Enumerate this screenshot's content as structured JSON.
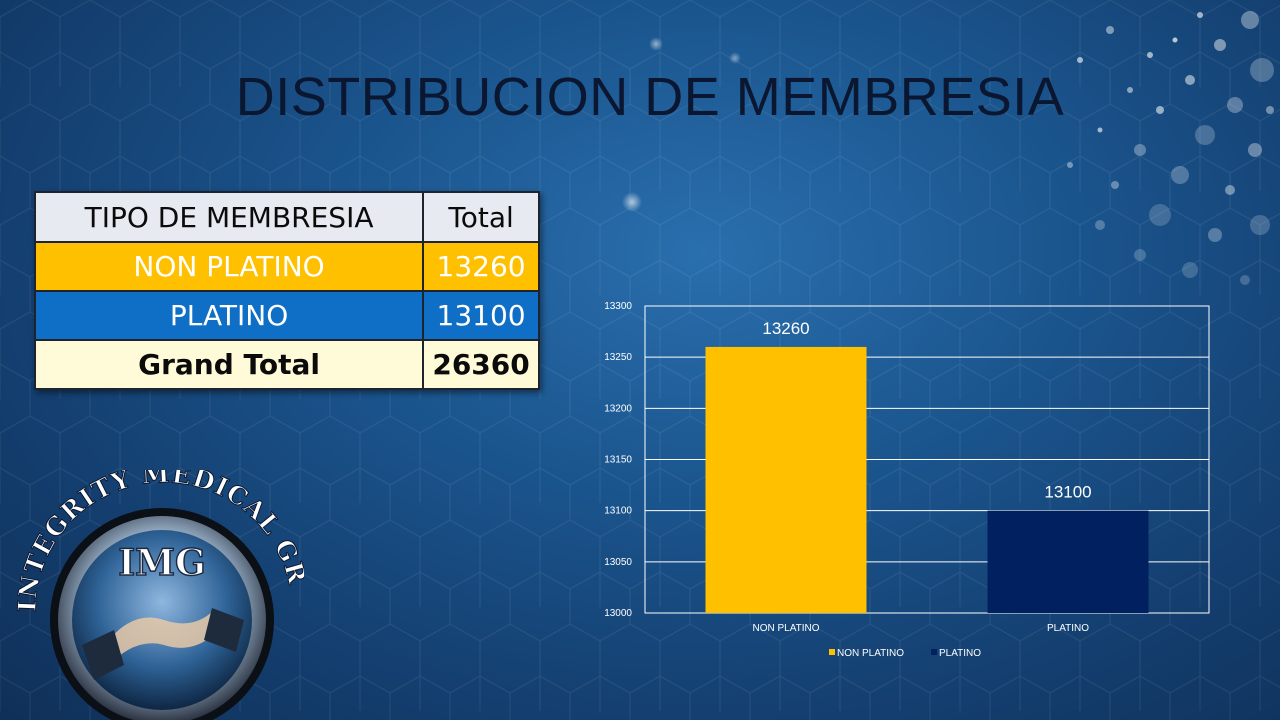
{
  "slide": {
    "title": "DISTRIBUCION DE MEMBRESIA"
  },
  "table": {
    "headers": [
      "TIPO DE MEMBRESIA",
      "Total"
    ],
    "rows": [
      {
        "label": "NON PLATINO",
        "value": "13260",
        "color": "#ffc000"
      },
      {
        "label": "PLATINO",
        "value": "13100",
        "color": "#0f6fc6"
      }
    ],
    "total": {
      "label": "Grand Total",
      "value": "26360"
    }
  },
  "logo": {
    "arc_text": "INTEGRITY MEDICAL GROUP",
    "monogram": "IMG"
  },
  "chart_data": {
    "type": "bar",
    "categories": [
      "NON PLATINO",
      "PLATINO"
    ],
    "values": [
      13260,
      13100
    ],
    "colors": [
      "#ffc000",
      "#002060"
    ],
    "ylim": [
      13000,
      13300
    ],
    "yticks": [
      13000,
      13050,
      13100,
      13150,
      13200,
      13250,
      13300
    ],
    "grid": true,
    "legend": {
      "position": "bottom",
      "entries": [
        "NON PLATINO",
        "PLATINO"
      ]
    },
    "title": "",
    "xlabel": "",
    "ylabel": ""
  }
}
